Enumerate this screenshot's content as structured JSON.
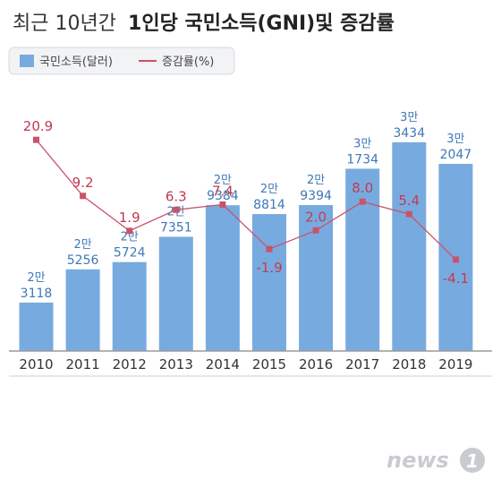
{
  "title_light": "최근 10년간",
  "title_bold": "1인당 국민소득(GNI)및 증감률",
  "logo_text": "news",
  "logo_mark": "1",
  "colors": {
    "bar": "#77abe0",
    "line": "#c9536a",
    "bar_text": "#3f78b6",
    "line_text": "#c23a4f"
  },
  "chart_data": {
    "type": "bar",
    "categories": [
      "2010",
      "2011",
      "2012",
      "2013",
      "2014",
      "2015",
      "2016",
      "2017",
      "2018",
      "2019"
    ],
    "legend_placement": "top-left",
    "grid": false,
    "series": [
      {
        "name": "국민소득(달러)",
        "kind": "bar",
        "values": [
          23118,
          25256,
          25724,
          27351,
          29384,
          28814,
          29394,
          31734,
          33434,
          32047
        ],
        "label_top": [
          "2만",
          "2만",
          "2만",
          "2만",
          "2만",
          "2만",
          "2만",
          "3만",
          "3만",
          "3만"
        ],
        "label_bottom": [
          "3118",
          "5256",
          "5724",
          "7351",
          "9384",
          "8814",
          "9394",
          "1734",
          "3434",
          "2047"
        ]
      },
      {
        "name": "증감률(%)",
        "kind": "line",
        "values": [
          20.9,
          9.2,
          1.9,
          6.3,
          7.4,
          -1.9,
          2.0,
          8.0,
          5.4,
          -4.1
        ],
        "labels": [
          "20.9",
          "9.2",
          "1.9",
          "6.3",
          "7.4",
          "-1.9",
          "2.0",
          "8.0",
          "5.4",
          "-4.1"
        ]
      }
    ]
  }
}
